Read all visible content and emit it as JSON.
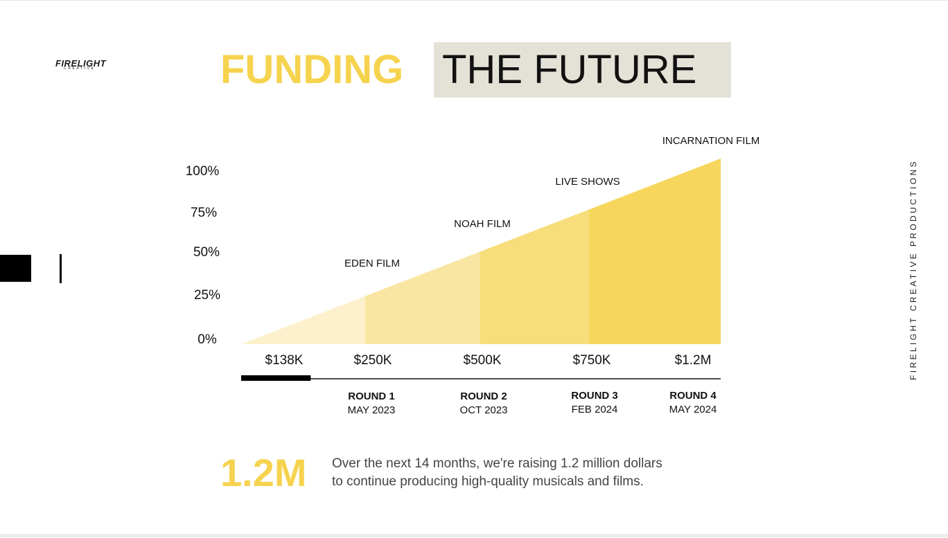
{
  "logo": {
    "main": "FIRELIGHT",
    "sub": "CREATIVE"
  },
  "title": {
    "left": "FUNDING",
    "right": "THE FUTURE"
  },
  "side_text": "FIRELIGHT CREATIVE PRODUCTIONS",
  "summary": {
    "big_number": "1.2M",
    "line1": "Over the next 14 months, we're raising 1.2 million dollars",
    "line2": "to continue producing high-quality musicals and films."
  },
  "colors": {
    "accent_yellow": "#f6d34f",
    "title_box": "#e4e2d7",
    "segment_fills": [
      "#fcf1cc",
      "#f9e6a3",
      "#f8dd7b",
      "#f6d65d"
    ]
  },
  "chart_data": {
    "type": "area",
    "y_ticks": [
      "0%",
      "25%",
      "50%",
      "75%",
      "100%"
    ],
    "x_ticks": [
      "$138K",
      "$250K",
      "$500K",
      "$750K",
      "$1.2M"
    ],
    "progress": 0.145,
    "segments": [
      {
        "label": "",
        "start": 0,
        "end": 0.25
      },
      {
        "label": "EDEN  FILM",
        "start": 0.25,
        "end": 0.5
      },
      {
        "label": "NOAH FILM",
        "start": 0.5,
        "end": 0.75
      },
      {
        "label": "LIVE SHOWS",
        "start": 0.75,
        "end": 1.0
      },
      {
        "label": "INCARNATION FILM",
        "start": 1.0,
        "end": 1.0
      }
    ],
    "rounds": [
      {
        "label": "ROUND 1",
        "date": "MAY 2023"
      },
      {
        "label": "ROUND 2",
        "date": "OCT  2023"
      },
      {
        "label": "ROUND 3",
        "date": "FEB 2024"
      },
      {
        "label": "ROUND 4",
        "date": "MAY 2024"
      }
    ]
  }
}
